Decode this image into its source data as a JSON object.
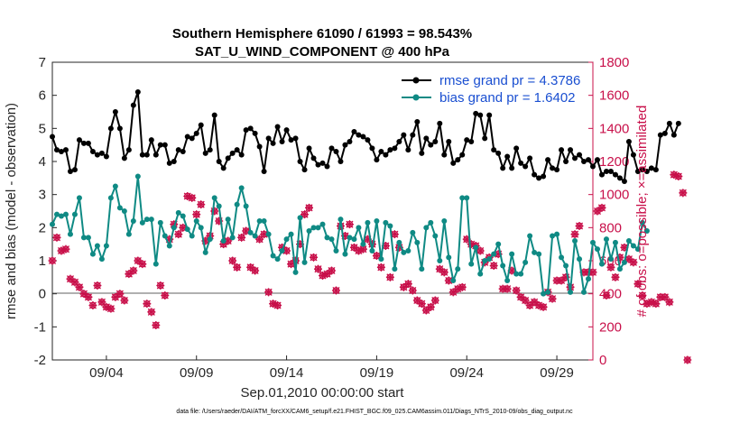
{
  "colors": {
    "rmse": "#000000",
    "bias": "#0f8a84",
    "obs": "#c8104a",
    "zero": "#b0b0b0",
    "legend_text": "#1a4fd1"
  },
  "chart_data": {
    "type": "line",
    "title": "Southern Hemisphere 61090 / 61993 = 98.543%",
    "subtitle": "SAT_U_WIND_COMPONENT @ 400 hPa",
    "xlabel": "Sep.01,2010 00:00:00 start",
    "ylabel": "rmse and bias (model - observation)",
    "ylabel_right": "# of obs: o=possible; ×=assimilated",
    "xlim": [
      1.0,
      31.0
    ],
    "ylim": [
      -2,
      7
    ],
    "ylim_right": [
      0,
      1800
    ],
    "x_ticks": [
      4,
      9,
      14,
      19,
      24,
      29
    ],
    "x_tick_labels": [
      "09/04",
      "09/09",
      "09/14",
      "09/19",
      "09/24",
      "09/29"
    ],
    "y_ticks": [
      -2,
      -1,
      0,
      1,
      2,
      3,
      4,
      5,
      6,
      7
    ],
    "y_ticks_right": [
      0,
      200,
      400,
      600,
      800,
      1000,
      1200,
      1400,
      1600,
      1800
    ],
    "legend": [
      {
        "name": "rmse grand pr = 4.3786",
        "series": "rmse"
      },
      {
        "name": "bias grand pr = 1.6402",
        "series": "bias"
      }
    ],
    "footnote": "data file: /Users/raeder/DAI/ATM_forcXX/CAM6_setup/f.e21.FHIST_BGC.f09_025.CAM6assim.011/Diags_NTrS_2010-09/obs_diag_output.nc",
    "x_start": 1.0,
    "x_step": 0.25,
    "series": [
      {
        "name": "rmse",
        "values": [
          4.75,
          4.35,
          4.3,
          4.35,
          3.7,
          3.75,
          4.65,
          4.55,
          4.55,
          4.3,
          4.2,
          4.25,
          4.15,
          5.0,
          5.5,
          5.0,
          4.1,
          4.35,
          5.7,
          6.1,
          4.2,
          4.2,
          4.65,
          4.2,
          4.5,
          4.5,
          3.95,
          4.0,
          4.35,
          4.3,
          4.75,
          4.7,
          4.85,
          5.1,
          4.25,
          4.35,
          5.4,
          4.0,
          3.8,
          4.1,
          4.25,
          4.35,
          4.2,
          4.95,
          5.0,
          4.85,
          4.45,
          3.7,
          4.7,
          4.55,
          5.05,
          4.6,
          4.95,
          4.65,
          4.7,
          4.0,
          3.75,
          4.4,
          4.1,
          3.9,
          3.95,
          3.85,
          4.4,
          4.3,
          4.0,
          4.5,
          4.6,
          4.9,
          4.8,
          4.75,
          4.65,
          4.4,
          4.05,
          4.3,
          4.2,
          4.35,
          4.4,
          4.6,
          4.8,
          4.35,
          4.8,
          5.2,
          4.25,
          4.7,
          4.5,
          4.6,
          5.15,
          4.2,
          4.6,
          3.95,
          4.05,
          4.2,
          4.65,
          4.6,
          5.45,
          5.4,
          4.7,
          5.4,
          4.35,
          4.25,
          3.8,
          4.15,
          3.8,
          4.4,
          3.95,
          3.85,
          4.1,
          3.6,
          3.5,
          3.55,
          4.05,
          3.8,
          3.75,
          4.35,
          4.0,
          4.35,
          4.1,
          4.2,
          4.0,
          4.05,
          3.85,
          4.05,
          3.6,
          3.7,
          3.7,
          3.6,
          3.5,
          3.4,
          4.6,
          4.2,
          3.7,
          3.75,
          3.7,
          3.8,
          3.75,
          4.8,
          4.85,
          5.15,
          4.8,
          5.15
        ]
      },
      {
        "name": "bias",
        "values": [
          2.1,
          2.4,
          2.35,
          2.4,
          1.8,
          2.4,
          2.9,
          1.7,
          1.7,
          1.2,
          1.45,
          1.05,
          1.45,
          2.9,
          3.25,
          2.6,
          2.5,
          1.8,
          2.2,
          3.55,
          2.15,
          2.25,
          2.25,
          0.9,
          2.15,
          1.75,
          1.45,
          2.0,
          2.45,
          2.35,
          1.95,
          1.75,
          2.2,
          2.0,
          1.25,
          1.65,
          2.9,
          2.65,
          1.6,
          2.25,
          1.7,
          2.7,
          3.2,
          2.65,
          1.85,
          1.75,
          2.2,
          2.2,
          1.8,
          1.15,
          1.05,
          1.3,
          1.65,
          1.8,
          0.65,
          2.3,
          0.95,
          1.9,
          2.0,
          2.0,
          2.1,
          1.7,
          1.65,
          1.3,
          2.25,
          1.2,
          1.7,
          1.65,
          2.0,
          1.5,
          2.15,
          1.3,
          2.2,
          1.05,
          2.15,
          2.05,
          0.75,
          1.55,
          1.25,
          1.3,
          1.85,
          1.55,
          0.75,
          2.0,
          2.15,
          1.75,
          1.0,
          2.2,
          1.1,
          0.4,
          0.75,
          2.9,
          2.9,
          0.9,
          1.4,
          0.6,
          1.0,
          1.05,
          1.2,
          1.5,
          0.85,
          0.4,
          1.2,
          0.6,
          0.6,
          0.95,
          1.75,
          1.25,
          1.2,
          0.0,
          0.05,
          1.75,
          1.8,
          1.1,
          0.85,
          0.05,
          1.6,
          1.05,
          0.05,
          0.45,
          1.55,
          1.35,
          0.9,
          1.65,
          1.05,
          1.55,
          0.75,
          0.95,
          1.6,
          1.45,
          1.35,
          2.15,
          1.9
        ]
      },
      {
        "name": "obs_possible",
        "values": [
          600,
          740,
          660,
          670,
          490,
          470,
          440,
          400,
          380,
          330,
          450,
          350,
          320,
          310,
          380,
          400,
          360,
          520,
          540,
          600,
          580,
          340,
          290,
          210,
          450,
          390,
          730,
          820,
          760,
          800,
          990,
          980,
          880,
          940,
          720,
          750,
          900,
          840,
          700,
          720,
          600,
          560,
          740,
          780,
          560,
          540,
          730,
          760,
          410,
          340,
          330,
          680,
          660,
          580,
          600,
          700,
          880,
          920,
          620,
          550,
          510,
          520,
          540,
          420,
          810,
          750,
          820,
          680,
          660,
          670,
          730,
          700,
          630,
          560,
          690,
          500,
          760,
          680,
          440,
          460,
          420,
          360,
          340,
          300,
          320,
          360,
          550,
          530,
          480,
          410,
          430,
          440,
          730,
          700,
          690,
          660,
          590,
          620,
          570,
          640,
          430,
          430,
          540,
          420,
          380,
          360,
          330,
          350,
          330,
          320,
          410,
          370,
          480,
          480,
          500,
          440,
          760,
          810,
          530,
          530,
          530,
          900,
          920,
          390,
          560,
          500,
          620,
          680,
          610,
          590,
          460,
          390,
          340,
          350,
          340,
          380,
          380,
          350,
          1120,
          1110,
          1010,
          0
        ]
      }
    ]
  }
}
